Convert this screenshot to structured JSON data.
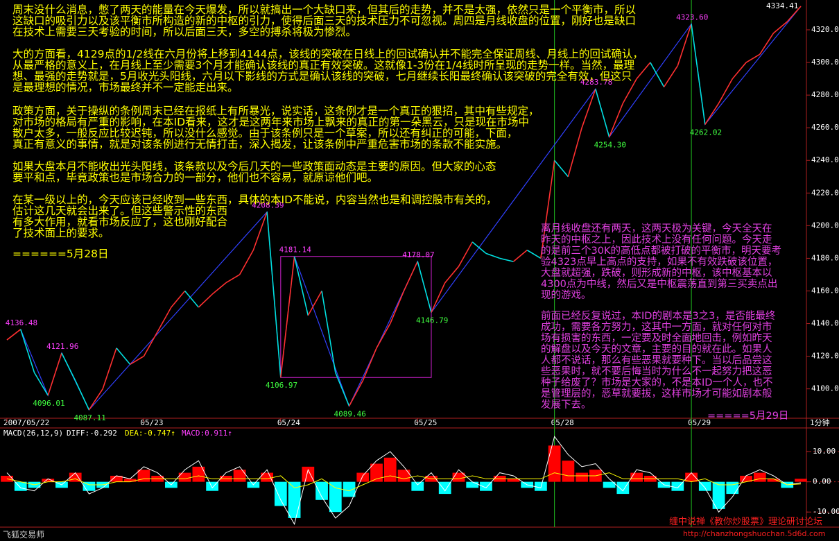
{
  "chart_data": [
    {
      "type": "line",
      "categories": [
        "2007/05/22",
        null,
        null,
        null,
        null,
        null,
        null,
        null,
        null,
        null,
        "05/23",
        null,
        null,
        null,
        null,
        null,
        null,
        null,
        null,
        null,
        "05/24",
        null,
        null,
        null,
        null,
        null,
        null,
        null,
        null,
        null,
        "05/25",
        null,
        null,
        null,
        null,
        null,
        null,
        null,
        null,
        null,
        "05/28",
        null,
        null,
        null,
        null,
        null,
        null,
        null,
        null,
        null,
        "05/29",
        null,
        null,
        null,
        null,
        null,
        null,
        null,
        null
      ],
      "values": [
        4130,
        4136.48,
        4110,
        4096.01,
        4121.96,
        4105,
        4087.11,
        4100,
        4125,
        4115,
        4120,
        4135,
        4150,
        4160,
        4150,
        4158,
        4165,
        4170,
        4185,
        4208.39,
        4106.97,
        4181.14,
        4145,
        4160,
        4110,
        4089.46,
        4105,
        4125,
        4140,
        4160,
        4178.07,
        4146.79,
        4165,
        4175,
        4190,
        4183,
        4180,
        4178,
        4185,
        4180,
        4240,
        4230,
        4260,
        4283.78,
        4254.3,
        4275,
        4290,
        4300,
        4285,
        4298,
        4323.6,
        4262.02,
        4275,
        4290,
        4300,
        4305,
        4318,
        4325,
        4334.41
      ],
      "value_labels": [
        null,
        "4136.48",
        null,
        "4096.01",
        "4121.96",
        null,
        "4087.11",
        null,
        null,
        null,
        null,
        null,
        null,
        null,
        null,
        null,
        null,
        null,
        null,
        "4208.39",
        "4106.97",
        "4181.14",
        null,
        null,
        null,
        "4089.46",
        null,
        null,
        null,
        null,
        "4178.07",
        "4146.79",
        null,
        null,
        null,
        null,
        null,
        null,
        null,
        null,
        null,
        null,
        null,
        "4283.78",
        "4254.30",
        null,
        null,
        null,
        null,
        null,
        "4323.60",
        "4262.02",
        null,
        null,
        null,
        null,
        null,
        null,
        "4334.41"
      ],
      "colors": {
        "up": "#ff3030",
        "down": "#00e0e0",
        "trend": "#3040ff",
        "zone": "#d020d0",
        "high_label": "#ff40ff",
        "low_label": "#40ff40"
      },
      "ylim": [
        4082,
        4337
      ],
      "yticks": [
        {
          "value": 4100,
          "label": "4100.00"
        },
        {
          "value": 4120,
          "label": "4120.00"
        },
        {
          "value": 4140,
          "label": "4140.00"
        },
        {
          "value": 4160,
          "label": "4160.00"
        },
        {
          "value": 4180,
          "label": "4180.00"
        },
        {
          "value": 4200,
          "label": "4200.00"
        },
        {
          "value": 4220,
          "label": "4220.00"
        },
        {
          "value": 4240,
          "label": "4240.00"
        },
        {
          "value": 4260,
          "label": "4260.00"
        },
        {
          "value": 4280,
          "label": "4280.00"
        },
        {
          "value": 4300,
          "label": "4300.00"
        },
        {
          "value": 4320,
          "label": "4320.00"
        }
      ],
      "period": "1分钟",
      "grid": false
    },
    {
      "type": "bar",
      "title": "MACD(26,12,9)",
      "hist_label": "MACD:0.911↑",
      "values": [
        2,
        -3,
        -2,
        1,
        -2,
        3,
        -3,
        -2,
        2,
        1,
        4,
        2,
        -2,
        3,
        5,
        -3,
        2,
        4,
        -2,
        3,
        -8,
        -12,
        5,
        -6,
        -10,
        -5,
        3,
        6,
        8,
        4,
        -3,
        2,
        -4,
        3,
        -2,
        -3,
        2,
        1,
        -2,
        -3,
        12,
        7,
        3,
        4,
        -2,
        -4,
        3,
        2,
        -2,
        -3,
        3,
        -3,
        -9,
        -4,
        2,
        3,
        1,
        -2,
        1
      ],
      "colors": {
        "up": "#ff0000",
        "down": "#00ffff"
      },
      "series": [
        {
          "name": "DIFF:-0.292",
          "color": "#ffffff",
          "values": [
            3,
            -2,
            -3,
            1,
            -1,
            3,
            -4,
            -2,
            2,
            1,
            5,
            3,
            -1,
            4,
            7,
            -2,
            3,
            5,
            -1,
            4,
            -6,
            -14,
            4,
            -5,
            -12,
            -8,
            2,
            7,
            10,
            5,
            -1,
            3,
            -3,
            4,
            0,
            -2,
            3,
            2,
            -1,
            -2,
            15,
            9,
            5,
            6,
            1,
            -3,
            4,
            3,
            -1,
            -2,
            3,
            -2,
            -10,
            -5,
            2,
            4,
            2,
            -1,
            -0.3
          ]
        },
        {
          "name": "DEA:-0.747↑",
          "color": "#ffff00",
          "values": [
            1,
            0,
            -1,
            0,
            0,
            1,
            -1,
            -1,
            0,
            0,
            1,
            1,
            1,
            1,
            2,
            1,
            1,
            1,
            1,
            1,
            2,
            -2,
            -1,
            1,
            -2,
            -3,
            -1,
            1,
            2,
            1,
            2,
            1,
            1,
            1,
            2,
            1,
            1,
            1,
            1,
            1,
            3,
            2,
            2,
            2,
            3,
            1,
            1,
            1,
            1,
            1,
            0,
            1,
            -1,
            -1,
            0,
            1,
            1,
            -1,
            -0.7
          ]
        }
      ],
      "ylim": [
        -15,
        17.6
      ],
      "yticks": [
        {
          "value": 10,
          "label": "10.00"
        },
        {
          "value": 0,
          "label": "0.00"
        },
        {
          "value": -10,
          "label": "-10.00"
        }
      ],
      "grid": false
    }
  ],
  "notes": {
    "left": [
      [
        "周末没什么消息，憋了两天的能量在今天爆发，所以就搞出一个大缺口来，但其后的走势，并不是太强，依然只是一个平衡市，所以",
        "这缺口的吸引力以及该平衡市所构造的新的中枢的引力，使得后面三天的技术压力不可忽视。周四是月线收盘的位置，刚好也是缺口",
        "在技术上需要三天考验的时间，所以后面三天，多空的搏杀将极为惨烈。"
      ],
      [
        "大的方面看，4129点的1/2线在六月份将上移到4144点，该线的突破在日线上的回试确认并不能完全保证周线、月线上的回试确认，",
        "从最严格的意义上，在月线上至少需要3个月才能确认该线的真正有效突破。这就像1-3份在1/4线时所呈现的走势一样。当然，最理",
        "想、最强的走势就是，5月收光头阳线，六月以下影线的方式是确认该线的突破，七月继续长阳最终确认该突破的完全有效，但这只",
        "是最理想的情况，市场最终并不一定能走出来。"
      ],
      [
        "政策方面，关于操纵的条例周末已经在报纸上有所暴光，说实话，这条例才是一个真正的狠招，其中有些规定，",
        "对市场的格局有严重的影响，在本ID看来，这才是这两年来市场上飘来的真正的第一朵黑云，只是现在市场中",
        "散户太多，一般反应比较迟钝，所以没什么感觉。由于该条例只是一个草案，所以还有纠正的可能，下面，",
        "真正有意义的事情，就是对该条例进行无情打击，深入揭发，让该条例中严重危害市场的条款不能实施。"
      ],
      [
        "如果大盘本月不能收出光头阳线，该条款以及今后几天的一些政策面动态是主要的原因。但大家的心态",
        "要平和点，毕竟政策也是市场合力的一部分，他们也不容易，就原谅他们吧。"
      ],
      [
        "在某一级以上的，今天应该已经收到一些东西，具体的本ID不能说，内容当然也是和调控股市有关的，",
        "估计这几天就会出来了。但这些警示性的东西",
        "有多大作用，就看市场反应了，这也刚好配合",
        "了技术面上的要求。"
      ]
    ],
    "left_date": "======5月28日",
    "right": [
      [
        "离月线收盘还有两天，这两天极为关键，今天全天在",
        "昨天的中枢之上，因此技术上没有任何问题。今天走",
        "的是前三个30K的高低点都被打破的平衡市，明天要考",
        "验4323点早上高点的支持，如果不有效跌破该位置，",
        "大盘就超强，跌破，则形成新的中枢，该中枢基本以",
        "4300点为中线，然后又是中枢震荡直到第三买卖点出",
        "现的游戏。"
      ],
      [
        "前面已经反复说过，本ID的剧本是3之3，是否能最终",
        "成功，需要各方努力，这其中一方面，就对任何对市",
        "场有损害的东西，一定要及时全面地回击，例如昨天",
        "的解盘以及今天的文章，主要的目的就在此。如果人",
        "人都不说话，那么有些恶果就要种下。当以后品尝这",
        "些恶果时，就不要后悔当时为什么不一起努力把这恶",
        "种子给废了？市场是大家的，不是本ID一个人，也不",
        "是管理层的，恶草就要拔，这样市场才可能如剧本般",
        "发展下去。"
      ]
    ],
    "right_date": "=====5月29日"
  },
  "footer": {
    "software": "飞狐交易师",
    "forum": "缠中说禅《教你炒股票》理论研讨论坛",
    "url": "http://chanzhongshuochan.5d6d.com"
  }
}
